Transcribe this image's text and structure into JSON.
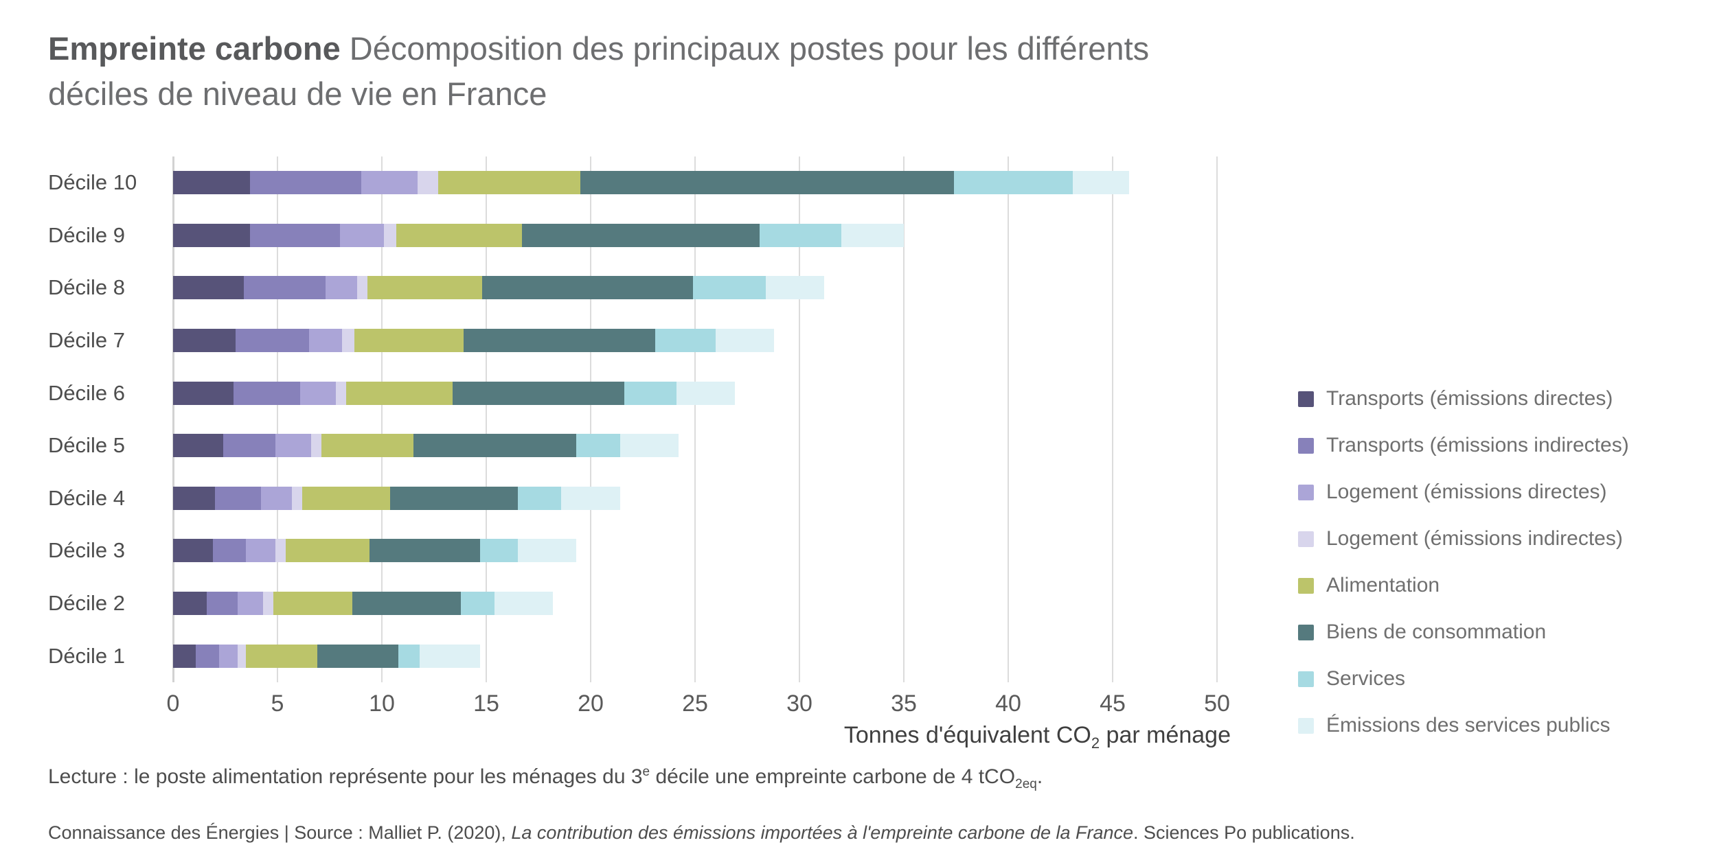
{
  "title": {
    "bold": "Empreinte carbone",
    "rest": " Décomposition des principaux postes pour les différents",
    "line2": "déciles de niveau de vie en France"
  },
  "chart_data": {
    "type": "bar",
    "orientation": "horizontal",
    "stacked": true,
    "grid": true,
    "legend_position": "right",
    "xlim": [
      0,
      50
    ],
    "xticks": [
      0,
      5,
      10,
      15,
      20,
      25,
      30,
      35,
      40,
      45,
      50
    ],
    "xlabel": "Tonnes d'équivalent CO2 par ménage",
    "xlabel_parts": {
      "pre": "Tonnes d'équivalent CO",
      "sub": "2",
      "post": " par ménage"
    },
    "categories": [
      "Décile 10",
      "Décile 9",
      "Décile 8",
      "Décile 7",
      "Décile 6",
      "Décile 5",
      "Décile 4",
      "Décile 3",
      "Décile 2",
      "Décile 1"
    ],
    "series": [
      {
        "name": "Transports (émissions directes)",
        "color": "#575379",
        "values": [
          3.7,
          3.7,
          3.4,
          3.0,
          2.9,
          2.4,
          2.0,
          1.9,
          1.6,
          1.1
        ]
      },
      {
        "name": "Transports (émissions indirectes)",
        "color": "#8781ba",
        "values": [
          5.3,
          4.3,
          3.9,
          3.5,
          3.2,
          2.5,
          2.2,
          1.6,
          1.5,
          1.1
        ]
      },
      {
        "name": "Logement (émissions directes)",
        "color": "#aba5d7",
        "values": [
          2.7,
          2.1,
          1.5,
          1.6,
          1.7,
          1.7,
          1.5,
          1.4,
          1.2,
          0.9
        ]
      },
      {
        "name": "Logement (émissions indirectes)",
        "color": "#d8d5ec",
        "values": [
          1.0,
          0.6,
          0.5,
          0.6,
          0.5,
          0.5,
          0.5,
          0.5,
          0.5,
          0.4
        ]
      },
      {
        "name": "Alimentation",
        "color": "#bcc46a",
        "values": [
          6.8,
          6.0,
          5.5,
          5.2,
          5.1,
          4.4,
          4.2,
          4.0,
          3.8,
          3.4
        ]
      },
      {
        "name": "Biens de consommation",
        "color": "#557a7e",
        "values": [
          17.9,
          11.4,
          10.1,
          9.2,
          8.2,
          7.8,
          6.1,
          5.3,
          5.2,
          3.9
        ]
      },
      {
        "name": "Services",
        "color": "#a6dae2",
        "values": [
          5.7,
          3.9,
          3.5,
          2.9,
          2.5,
          2.1,
          2.1,
          1.8,
          1.6,
          1.0
        ]
      },
      {
        "name": "Émissions des services publics",
        "color": "#def1f5",
        "values": [
          2.7,
          3.0,
          2.8,
          2.8,
          2.8,
          2.8,
          2.8,
          2.8,
          2.8,
          2.9
        ]
      }
    ],
    "totals": [
      45.8,
      35.0,
      31.2,
      28.8,
      26.9,
      24.2,
      21.4,
      19.3,
      18.2,
      14.7
    ]
  },
  "footnotes": {
    "lecture": {
      "p1": "Lecture : le poste alimentation représente pour les ménages du 3",
      "sup": "e",
      "p2": " décile une empreinte carbone de 4 tCO",
      "sub": "2eq",
      "p3": "."
    },
    "source": {
      "p1": "Connaissance des Énergies | Source : Malliet P. (2020), ",
      "italic": "La contribution des émissions importées à l'empreinte carbone de la France",
      "p2": ". Sciences Po publications."
    }
  }
}
